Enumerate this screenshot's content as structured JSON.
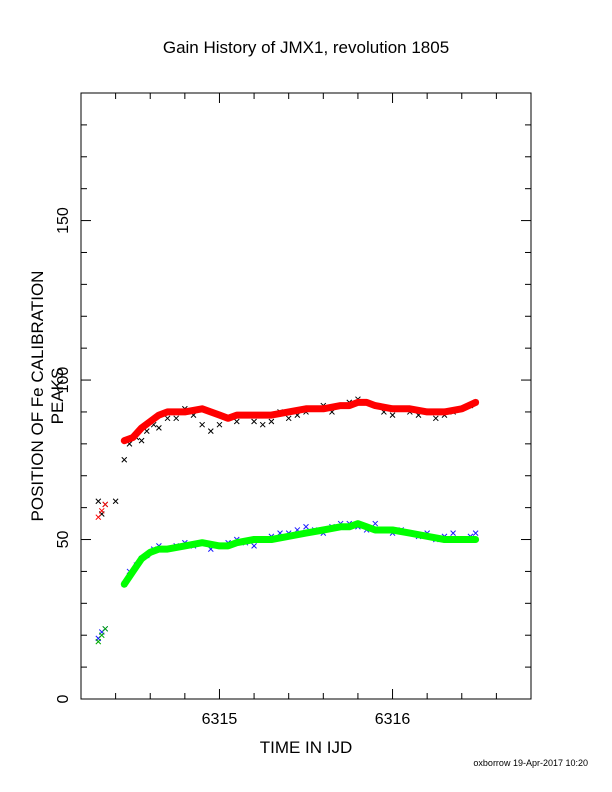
{
  "chart_data": {
    "type": "scatter",
    "title": "Gain History of JMX1, revolution 1805",
    "xlabel": "TIME IN IJD",
    "ylabel": "POSITION OF Fe CALIBRATION PEAKS",
    "xlim": [
      6314.2,
      6316.8
    ],
    "ylim": [
      0,
      190
    ],
    "xticks": [
      6315,
      6316
    ],
    "yticks": [
      0,
      50,
      100,
      150
    ],
    "grid": false,
    "series": [
      {
        "color": "#000000",
        "marker": "x",
        "x": [
          6314.3,
          6314.32,
          6314.34,
          6314.4,
          6314.45,
          6314.48,
          6314.52,
          6314.55,
          6314.58,
          6314.62,
          6314.65,
          6314.7,
          6314.75,
          6314.8,
          6314.85,
          6314.9,
          6314.95,
          6315.0,
          6315.05,
          6315.1,
          6315.15,
          6315.2,
          6315.25,
          6315.3,
          6315.35,
          6315.4,
          6315.45,
          6315.5,
          6315.55,
          6315.6,
          6315.65,
          6315.7,
          6315.75,
          6315.8,
          6315.85,
          6315.9,
          6315.95,
          6316.0,
          6316.05,
          6316.1,
          6316.15,
          6316.2,
          6316.25,
          6316.3,
          6316.35,
          6316.4,
          6316.45,
          6316.48
        ],
        "y": [
          62,
          58,
          61,
          62,
          75,
          80,
          82,
          81,
          84,
          86,
          85,
          88,
          88,
          91,
          89,
          86,
          84,
          86,
          88,
          87,
          89,
          87,
          86,
          87,
          90,
          88,
          89,
          90,
          91,
          92,
          90,
          92,
          93,
          94,
          93,
          92,
          90,
          89,
          91,
          90,
          89,
          90,
          88,
          89,
          90,
          91,
          92,
          93
        ]
      },
      {
        "color": "#1a1aff",
        "marker": "x",
        "x": [
          6314.3,
          6314.32,
          6314.34,
          6314.45,
          6314.48,
          6314.52,
          6314.55,
          6314.58,
          6314.62,
          6314.65,
          6314.7,
          6314.75,
          6314.8,
          6314.85,
          6314.9,
          6314.95,
          6315.0,
          6315.05,
          6315.1,
          6315.15,
          6315.2,
          6315.25,
          6315.3,
          6315.35,
          6315.4,
          6315.45,
          6315.5,
          6315.55,
          6315.6,
          6315.65,
          6315.7,
          6315.75,
          6315.8,
          6315.85,
          6315.9,
          6315.95,
          6316.0,
          6316.05,
          6316.1,
          6316.15,
          6316.2,
          6316.25,
          6316.3,
          6316.35,
          6316.4,
          6316.45,
          6316.48
        ],
        "y": [
          19,
          21,
          22,
          36,
          40,
          42,
          44,
          45,
          47,
          48,
          47,
          48,
          49,
          48,
          49,
          47,
          48,
          49,
          50,
          49,
          48,
          50,
          51,
          52,
          52,
          53,
          54,
          53,
          52,
          54,
          55,
          55,
          54,
          53,
          55,
          53,
          52,
          53,
          52,
          51,
          52,
          50,
          51,
          52,
          50,
          51,
          52
        ]
      },
      {
        "color": "#ff0000",
        "marker": "line",
        "x": [
          6314.45,
          6314.5,
          6314.55,
          6314.6,
          6314.65,
          6314.7,
          6314.8,
          6314.9,
          6315.0,
          6315.05,
          6315.1,
          6315.2,
          6315.3,
          6315.4,
          6315.5,
          6315.6,
          6315.7,
          6315.75,
          6315.8,
          6315.85,
          6315.9,
          6316.0,
          6316.1,
          6316.2,
          6316.3,
          6316.4,
          6316.48
        ],
        "y": [
          81,
          82,
          85,
          87,
          89,
          90,
          90,
          91,
          89,
          88,
          89,
          89,
          89,
          90,
          91,
          91,
          92,
          92,
          93,
          93,
          92,
          91,
          91,
          90,
          90,
          91,
          93
        ]
      },
      {
        "color": "#00ff00",
        "marker": "line",
        "x": [
          6314.45,
          6314.5,
          6314.55,
          6314.6,
          6314.65,
          6314.7,
          6314.8,
          6314.9,
          6315.0,
          6315.05,
          6315.1,
          6315.2,
          6315.3,
          6315.4,
          6315.5,
          6315.6,
          6315.7,
          6315.75,
          6315.8,
          6315.85,
          6315.9,
          6316.0,
          6316.1,
          6316.2,
          6316.3,
          6316.4,
          6316.48
        ],
        "y": [
          36,
          40,
          44,
          46,
          47,
          47,
          48,
          49,
          48,
          48,
          49,
          50,
          50,
          51,
          52,
          53,
          54,
          54,
          55,
          54,
          53,
          53,
          52,
          51,
          50,
          50,
          50
        ]
      },
      {
        "color": "#ff0000",
        "marker": "x",
        "x": [
          6314.3,
          6314.32,
          6314.34
        ],
        "y": [
          57,
          59,
          61
        ]
      },
      {
        "color": "#00aa00",
        "marker": "x",
        "x": [
          6314.3,
          6314.32,
          6314.34
        ],
        "y": [
          18,
          20,
          22
        ]
      }
    ]
  },
  "footer": "oxborrow 19-Apr-2017 10:20"
}
